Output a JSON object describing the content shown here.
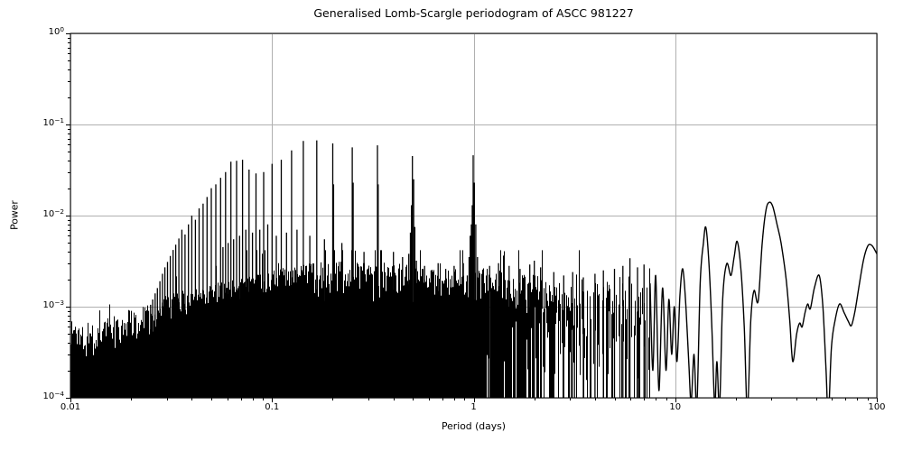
{
  "chart_data": {
    "type": "line",
    "title": "Generalised Lomb-Scargle periodogram of ASCC 981227",
    "xlabel": "Period (days)",
    "ylabel": "Power",
    "xscale": "log",
    "yscale": "log",
    "xlim": [
      0.01,
      100
    ],
    "ylim": [
      0.0001,
      1
    ],
    "grid": true,
    "legend": false,
    "line_color": "#000000",
    "grid_color": "#b0b0b0",
    "background_color": "#ffffff",
    "x_ticks": [
      0.01,
      0.1,
      1,
      10,
      100
    ],
    "x_tick_labels": [
      "0.01",
      "0.1",
      "1",
      "10",
      "100"
    ],
    "y_ticks": [
      1,
      0.1,
      0.01,
      0.001,
      0.0001
    ],
    "y_tick_base": "10",
    "y_tick_exponents": [
      "0",
      "−1",
      "−2",
      "−3",
      "−4"
    ],
    "dense_region_end_days": 7.5,
    "note": "Unresolved dense periodogram for P<7.5 d encoded as noise_band envelope [period, log10(min top), log10(max top)] plus alias_peaks [period, power]; resolved curve for P>7.5 d given as smooth_curve [period, power] points read from the plot.",
    "noise_band": [
      [
        0.01,
        -3.65,
        -3.1
      ],
      [
        0.013,
        -3.62,
        -3.2
      ],
      [
        0.016,
        -3.55,
        -3.1
      ],
      [
        0.02,
        -3.45,
        -3.0
      ],
      [
        0.025,
        -3.35,
        -2.95
      ],
      [
        0.032,
        -3.2,
        -2.85
      ],
      [
        0.04,
        -3.1,
        -2.8
      ],
      [
        0.05,
        -3.0,
        -2.75
      ],
      [
        0.065,
        -2.95,
        -2.7
      ],
      [
        0.08,
        -2.92,
        -2.66
      ],
      [
        0.1,
        -2.88,
        -2.6
      ],
      [
        0.13,
        -2.85,
        -2.55
      ],
      [
        0.17,
        -2.95,
        -2.5
      ],
      [
        0.25,
        -3.0,
        -2.5
      ],
      [
        0.35,
        -3.0,
        -2.5
      ],
      [
        0.5,
        -3.05,
        -2.55
      ],
      [
        0.7,
        -3.05,
        -2.6
      ],
      [
        1.0,
        -3.0,
        -2.55
      ],
      [
        1.4,
        -3.1,
        -2.6
      ],
      [
        2.0,
        -3.2,
        -2.65
      ],
      [
        3.0,
        -3.3,
        -2.7
      ],
      [
        4.5,
        -3.4,
        -2.7
      ],
      [
        6.0,
        -3.45,
        -2.65
      ],
      [
        7.5,
        -3.55,
        -2.7
      ]
    ],
    "alias_peaks": [
      [
        0.0244,
        0.0009
      ],
      [
        0.025,
        0.00105
      ],
      [
        0.0256,
        0.0012
      ],
      [
        0.0263,
        0.0014
      ],
      [
        0.027,
        0.0016
      ],
      [
        0.0278,
        0.0019
      ],
      [
        0.0286,
        0.0023
      ],
      [
        0.0294,
        0.0027
      ],
      [
        0.0303,
        0.0031
      ],
      [
        0.0313,
        0.0036
      ],
      [
        0.0323,
        0.0042
      ],
      [
        0.0333,
        0.0048
      ],
      [
        0.0345,
        0.0056
      ],
      [
        0.0357,
        0.007
      ],
      [
        0.037,
        0.0062
      ],
      [
        0.0385,
        0.008
      ],
      [
        0.04,
        0.01
      ],
      [
        0.0417,
        0.009
      ],
      [
        0.0435,
        0.012
      ],
      [
        0.0455,
        0.0135
      ],
      [
        0.0476,
        0.016
      ],
      [
        0.05,
        0.02
      ],
      [
        0.0526,
        0.022
      ],
      [
        0.0556,
        0.026
      ],
      [
        0.0571,
        0.0045
      ],
      [
        0.0588,
        0.03
      ],
      [
        0.0606,
        0.005
      ],
      [
        0.0625,
        0.039
      ],
      [
        0.0645,
        0.0055
      ],
      [
        0.0667,
        0.04
      ],
      [
        0.069,
        0.006
      ],
      [
        0.0714,
        0.041
      ],
      [
        0.0741,
        0.007
      ],
      [
        0.0769,
        0.032
      ],
      [
        0.08,
        0.0065
      ],
      [
        0.0833,
        0.029
      ],
      [
        0.087,
        0.007
      ],
      [
        0.0909,
        0.03
      ],
      [
        0.0952,
        0.008
      ],
      [
        0.1,
        0.037
      ],
      [
        0.105,
        0.006
      ],
      [
        0.1111,
        0.041
      ],
      [
        0.118,
        0.0065
      ],
      [
        0.125,
        0.052
      ],
      [
        0.133,
        0.007
      ],
      [
        0.1429,
        0.066
      ],
      [
        0.154,
        0.006
      ],
      [
        0.1667,
        0.067
      ],
      [
        0.182,
        0.0055
      ],
      [
        0.2,
        0.062
      ],
      [
        0.202,
        0.022
      ],
      [
        0.222,
        0.005
      ],
      [
        0.25,
        0.056
      ],
      [
        0.2525,
        0.023
      ],
      [
        0.286,
        0.004
      ],
      [
        0.3333,
        0.059
      ],
      [
        0.336,
        0.022
      ],
      [
        0.4,
        0.004
      ],
      [
        0.444,
        0.0035
      ],
      [
        0.465,
        0.002
      ],
      [
        0.477,
        0.0038
      ],
      [
        0.486,
        0.0065
      ],
      [
        0.492,
        0.013
      ],
      [
        0.497,
        0.045
      ],
      [
        0.504,
        0.025
      ],
      [
        0.511,
        0.0075
      ],
      [
        0.52,
        0.0032
      ],
      [
        0.532,
        0.0018
      ],
      [
        0.571,
        0.0028
      ],
      [
        0.615,
        0.0025
      ],
      [
        0.667,
        0.003
      ],
      [
        0.727,
        0.0026
      ],
      [
        0.8,
        0.0028
      ],
      [
        0.889,
        0.003
      ],
      [
        0.93,
        0.0022
      ],
      [
        0.95,
        0.0035
      ],
      [
        0.962,
        0.006
      ],
      [
        0.975,
        0.008
      ],
      [
        0.985,
        0.013
      ],
      [
        0.995,
        0.046
      ],
      [
        1.008,
        0.023
      ],
      [
        1.025,
        0.008
      ],
      [
        1.045,
        0.0035
      ],
      [
        1.07,
        0.002
      ],
      [
        1.2,
        0.0028
      ],
      [
        1.33,
        0.003
      ],
      [
        1.5,
        0.0028
      ],
      [
        1.7,
        0.0026
      ],
      [
        1.9,
        0.0029
      ],
      [
        2.0,
        0.0032
      ],
      [
        2.15,
        0.0027
      ],
      [
        2.5,
        0.0024
      ],
      [
        2.8,
        0.0022
      ],
      [
        3.1,
        0.0024
      ],
      [
        3.5,
        0.0021
      ],
      [
        4.0,
        0.0023
      ],
      [
        4.4,
        0.0025
      ],
      [
        5.0,
        0.0026
      ],
      [
        5.5,
        0.0028
      ],
      [
        5.96,
        0.0034
      ],
      [
        6.5,
        0.0027
      ],
      [
        7.0,
        0.0029
      ]
    ],
    "smooth_curve": [
      [
        7.5,
        0.0018
      ],
      [
        7.75,
        0.0002
      ],
      [
        8.0,
        0.0022
      ],
      [
        8.3,
        0.00012
      ],
      [
        8.65,
        0.0016
      ],
      [
        9.0,
        0.0002
      ],
      [
        9.3,
        0.0012
      ],
      [
        9.6,
        0.0003
      ],
      [
        9.9,
        0.001
      ],
      [
        10.2,
        0.00025
      ],
      [
        10.55,
        0.0013
      ],
      [
        10.9,
        0.0026
      ],
      [
        11.3,
        0.001
      ],
      [
        11.7,
        0.00022
      ],
      [
        12.0,
        9e-05
      ],
      [
        12.4,
        0.0003
      ],
      [
        12.8,
        8e-05
      ],
      [
        13.3,
        0.0018
      ],
      [
        13.8,
        0.005
      ],
      [
        14.2,
        0.0074
      ],
      [
        14.7,
        0.003
      ],
      [
        15.2,
        0.0006
      ],
      [
        15.7,
        8e-05
      ],
      [
        16.1,
        0.00025
      ],
      [
        16.6,
        8e-05
      ],
      [
        17.2,
        0.0012
      ],
      [
        18.0,
        0.00295
      ],
      [
        18.9,
        0.0022
      ],
      [
        19.6,
        0.0035
      ],
      [
        20.3,
        0.0052
      ],
      [
        21.2,
        0.0025
      ],
      [
        22.0,
        0.0006
      ],
      [
        22.8,
        7e-05
      ],
      [
        23.7,
        0.0007
      ],
      [
        24.6,
        0.0015
      ],
      [
        25.8,
        0.00115
      ],
      [
        27.0,
        0.005
      ],
      [
        28.2,
        0.0115
      ],
      [
        29.3,
        0.014
      ],
      [
        30.5,
        0.0125
      ],
      [
        32.0,
        0.008
      ],
      [
        33.5,
        0.005
      ],
      [
        35.5,
        0.002
      ],
      [
        37.0,
        0.0007
      ],
      [
        38.3,
        0.00025
      ],
      [
        40.0,
        0.0005
      ],
      [
        41.4,
        0.00066
      ],
      [
        42.6,
        0.0006
      ],
      [
        44.0,
        0.00085
      ],
      [
        45.4,
        0.00107
      ],
      [
        46.8,
        0.00095
      ],
      [
        49.0,
        0.0016
      ],
      [
        51.8,
        0.0022
      ],
      [
        54.0,
        0.001
      ],
      [
        56.0,
        0.0002
      ],
      [
        57.5,
        6e-05
      ],
      [
        59.5,
        0.00035
      ],
      [
        62.0,
        0.0007
      ],
      [
        65.3,
        0.00107
      ],
      [
        69.0,
        0.00085
      ],
      [
        72.0,
        0.0007
      ],
      [
        74.8,
        0.00062
      ],
      [
        78.0,
        0.0009
      ],
      [
        82.0,
        0.0018
      ],
      [
        86.0,
        0.0033
      ],
      [
        90.0,
        0.0046
      ],
      [
        93.0,
        0.0048
      ],
      [
        96.0,
        0.0045
      ],
      [
        100.0,
        0.0038
      ]
    ]
  }
}
